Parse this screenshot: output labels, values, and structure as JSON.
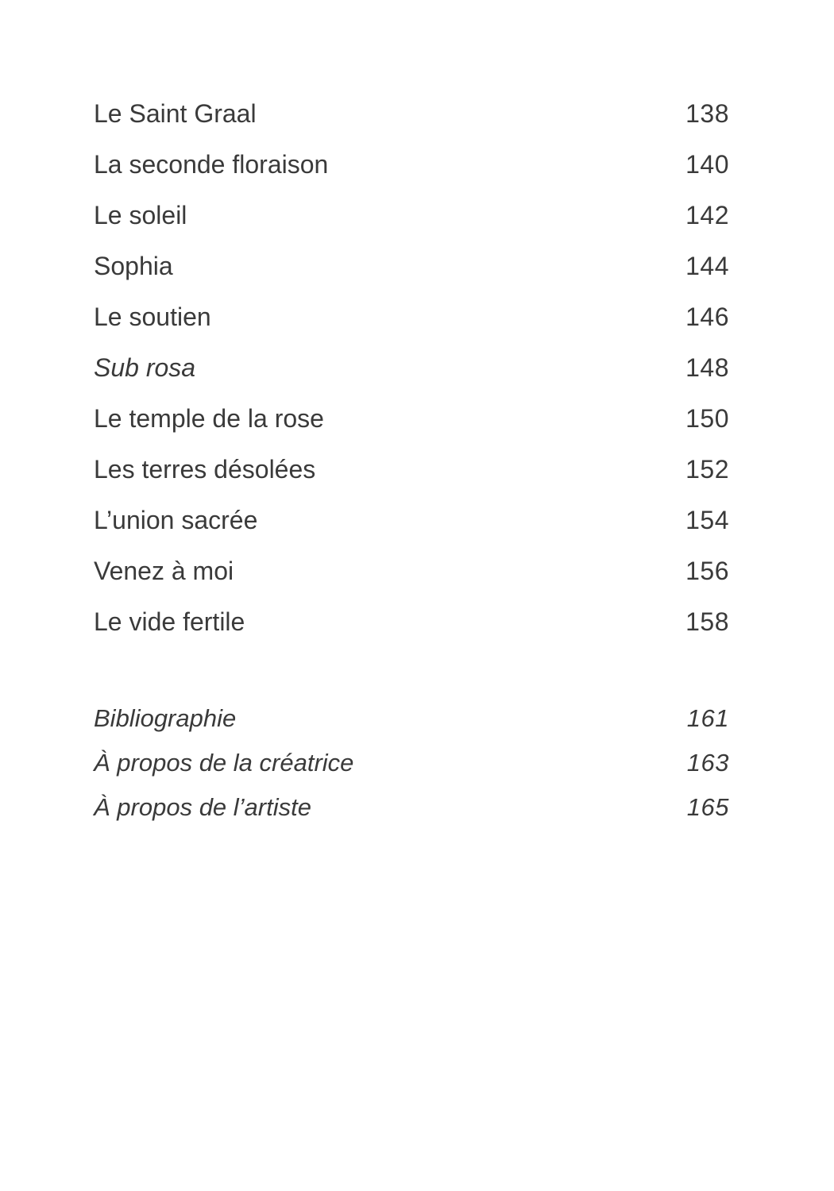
{
  "toc": {
    "entries": [
      {
        "title": "Le Saint Graal",
        "page": "138",
        "italic": false
      },
      {
        "title": "La seconde floraison",
        "page": "140",
        "italic": false
      },
      {
        "title": "Le soleil",
        "page": "142",
        "italic": false
      },
      {
        "title": "Sophia",
        "page": "144",
        "italic": false
      },
      {
        "title": "Le soutien",
        "page": "146",
        "italic": false
      },
      {
        "title": "Sub rosa",
        "page": "148",
        "italic": true
      },
      {
        "title": "Le temple de la rose",
        "page": "150",
        "italic": false
      },
      {
        "title": "Les terres désolées",
        "page": "152",
        "italic": false
      },
      {
        "title": "L’union sacrée",
        "page": "154",
        "italic": false
      },
      {
        "title": "Venez à moi",
        "page": "156",
        "italic": false
      },
      {
        "title": "Le vide fertile",
        "page": "158",
        "italic": false
      }
    ],
    "back_matter": [
      {
        "title": "Bibliographie",
        "page": "161"
      },
      {
        "title": "À propos de la créatrice",
        "page": "163"
      },
      {
        "title": "À propos de l’artiste",
        "page": "165"
      }
    ]
  }
}
